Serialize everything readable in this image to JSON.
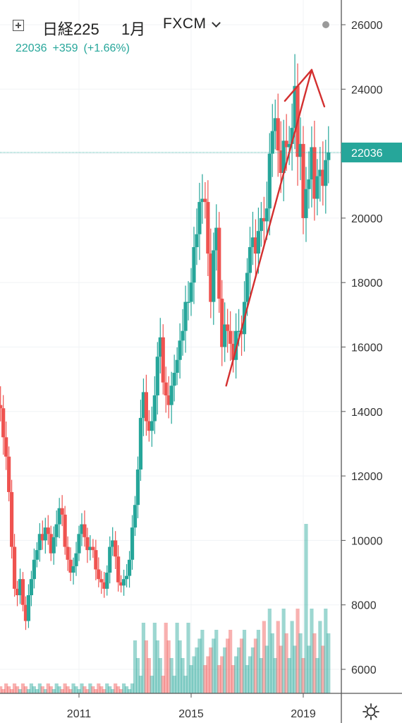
{
  "header": {
    "symbol": "日経225",
    "interval": "1月",
    "source": "FXCM",
    "last": "22036",
    "change": "+359",
    "change_pct": "(+1.66%)"
  },
  "icons": {
    "legend_toggle": "plus-square-icon",
    "dropdown": "chevron-down-icon",
    "status": "status-dot-icon",
    "settings": "gear-icon",
    "annotation": "red-arrow-drawing-icon"
  },
  "colors": {
    "up": "#26a69a",
    "down": "#ef5350",
    "price_badge": "#26a69a",
    "annotation": "#d32f2f"
  },
  "chart_data": {
    "type": "candlestick",
    "interval": "monthly",
    "last_price_label": "22036",
    "y_axis": {
      "ticks": [
        6000,
        8000,
        10000,
        12000,
        14000,
        16000,
        18000,
        20000,
        22000,
        24000,
        26000
      ],
      "tick_labels": [
        "6000",
        "8000",
        "10000",
        "12000",
        "14000",
        "16000",
        "18000",
        "20000",
        "",
        "24000",
        "26000"
      ],
      "range": [
        5300,
        26500
      ]
    },
    "x_axis": {
      "ticks": [
        2011,
        2015,
        2019
      ],
      "tick_labels": [
        "2011",
        "2015",
        "2019"
      ],
      "range": [
        2008.0,
        2020.2
      ]
    },
    "close_series": [
      [
        2008.0,
        13600
      ],
      [
        2008.1,
        14200
      ],
      [
        2008.2,
        14100
      ],
      [
        2008.3,
        13200
      ],
      [
        2008.4,
        12600
      ],
      [
        2008.5,
        11500
      ],
      [
        2008.6,
        9800
      ],
      [
        2008.7,
        8500
      ],
      [
        2008.8,
        8300
      ],
      [
        2008.9,
        8800
      ],
      [
        2009.0,
        8000
      ],
      [
        2009.1,
        7500
      ],
      [
        2009.2,
        8300
      ],
      [
        2009.3,
        8800
      ],
      [
        2009.4,
        9400
      ],
      [
        2009.5,
        9700
      ],
      [
        2009.6,
        10200
      ],
      [
        2009.7,
        10000
      ],
      [
        2009.8,
        10400
      ],
      [
        2009.9,
        10200
      ],
      [
        2010.0,
        9600
      ],
      [
        2010.1,
        10100
      ],
      [
        2010.2,
        10500
      ],
      [
        2010.3,
        11000
      ],
      [
        2010.4,
        10800
      ],
      [
        2010.5,
        9800
      ],
      [
        2010.6,
        9400
      ],
      [
        2010.7,
        9000
      ],
      [
        2010.8,
        9200
      ],
      [
        2010.9,
        9600
      ],
      [
        2011.0,
        10200
      ],
      [
        2011.1,
        10500
      ],
      [
        2011.2,
        10100
      ],
      [
        2011.3,
        9700
      ],
      [
        2011.4,
        9800
      ],
      [
        2011.5,
        9700
      ],
      [
        2011.6,
        9100
      ],
      [
        2011.7,
        8800
      ],
      [
        2011.8,
        8700
      ],
      [
        2011.9,
        8500
      ],
      [
        2012.0,
        9000
      ],
      [
        2012.1,
        9800
      ],
      [
        2012.2,
        10000
      ],
      [
        2012.3,
        9500
      ],
      [
        2012.4,
        8700
      ],
      [
        2012.5,
        8600
      ],
      [
        2012.6,
        8800
      ],
      [
        2012.7,
        8900
      ],
      [
        2012.8,
        9400
      ],
      [
        2012.9,
        10400
      ],
      [
        2013.0,
        11100
      ],
      [
        2013.1,
        12200
      ],
      [
        2013.2,
        13800
      ],
      [
        2013.3,
        14600
      ],
      [
        2013.4,
        13700
      ],
      [
        2013.5,
        13400
      ],
      [
        2013.6,
        13700
      ],
      [
        2013.7,
        14500
      ],
      [
        2013.8,
        15700
      ],
      [
        2013.9,
        16300
      ],
      [
        2014.0,
        14900
      ],
      [
        2014.1,
        14500
      ],
      [
        2014.2,
        14200
      ],
      [
        2014.3,
        14800
      ],
      [
        2014.4,
        15200
      ],
      [
        2014.5,
        15600
      ],
      [
        2014.6,
        16200
      ],
      [
        2014.7,
        16500
      ],
      [
        2014.8,
        17400
      ],
      [
        2014.9,
        17400
      ],
      [
        2015.0,
        18000
      ],
      [
        2015.1,
        19100
      ],
      [
        2015.2,
        19500
      ],
      [
        2015.3,
        20500
      ],
      [
        2015.4,
        20600
      ],
      [
        2015.5,
        20500
      ],
      [
        2015.6,
        18900
      ],
      [
        2015.7,
        17400
      ],
      [
        2015.8,
        19000
      ],
      [
        2015.9,
        19700
      ],
      [
        2016.0,
        17500
      ],
      [
        2016.1,
        16000
      ],
      [
        2016.2,
        16700
      ],
      [
        2016.3,
        16500
      ],
      [
        2016.4,
        16100
      ],
      [
        2016.5,
        15600
      ],
      [
        2016.6,
        16500
      ],
      [
        2016.7,
        16500
      ],
      [
        2016.8,
        16400
      ],
      [
        2016.9,
        17400
      ],
      [
        2017.0,
        18300
      ],
      [
        2017.1,
        19100
      ],
      [
        2017.2,
        19400
      ],
      [
        2017.3,
        18900
      ],
      [
        2017.4,
        19600
      ],
      [
        2017.5,
        20000
      ],
      [
        2017.6,
        19900
      ],
      [
        2017.7,
        20300
      ],
      [
        2017.8,
        22000
      ],
      [
        2017.9,
        22700
      ],
      [
        2018.0,
        23100
      ],
      [
        2018.1,
        22100
      ],
      [
        2018.2,
        21400
      ],
      [
        2018.3,
        22400
      ],
      [
        2018.4,
        22200
      ],
      [
        2018.5,
        22300
      ],
      [
        2018.6,
        22800
      ],
      [
        2018.7,
        24100
      ],
      [
        2018.8,
        21900
      ],
      [
        2018.9,
        22300
      ],
      [
        2019.0,
        20000
      ],
      [
        2019.1,
        20900
      ],
      [
        2019.2,
        21200
      ],
      [
        2019.3,
        22200
      ],
      [
        2019.4,
        20600
      ],
      [
        2019.5,
        21300
      ],
      [
        2019.6,
        21500
      ],
      [
        2019.7,
        21000
      ],
      [
        2019.8,
        21800
      ],
      [
        2019.9,
        22036
      ]
    ],
    "volume": {
      "axis": "none",
      "peak_date": 2019.1
    },
    "annotations": [
      {
        "type": "arrow",
        "from": [
          2016.25,
          14800
        ],
        "to": [
          2019.3,
          24600
        ]
      }
    ]
  }
}
